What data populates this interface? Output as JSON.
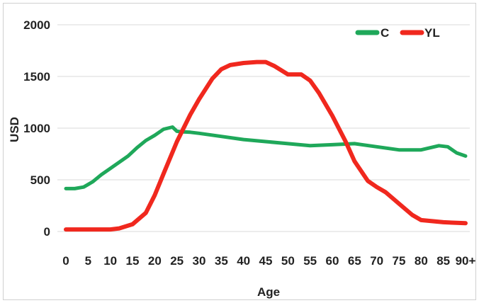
{
  "chart_data": {
    "type": "line",
    "title": "",
    "xlabel": "Age",
    "ylabel": "USD",
    "ylim": [
      0,
      2000
    ],
    "yticks": [
      0,
      500,
      1000,
      1500,
      2000
    ],
    "xlim": [
      0,
      90
    ],
    "xticks": [
      {
        "value": 0,
        "label": "0"
      },
      {
        "value": 5,
        "label": "5"
      },
      {
        "value": 10,
        "label": "10"
      },
      {
        "value": 15,
        "label": "15"
      },
      {
        "value": 20,
        "label": "20"
      },
      {
        "value": 25,
        "label": "25"
      },
      {
        "value": 30,
        "label": "30"
      },
      {
        "value": 35,
        "label": "35"
      },
      {
        "value": 40,
        "label": "40"
      },
      {
        "value": 45,
        "label": "45"
      },
      {
        "value": 50,
        "label": "50"
      },
      {
        "value": 55,
        "label": "55"
      },
      {
        "value": 60,
        "label": "60"
      },
      {
        "value": 65,
        "label": "65"
      },
      {
        "value": 70,
        "label": "70"
      },
      {
        "value": 75,
        "label": "75"
      },
      {
        "value": 80,
        "label": "80"
      },
      {
        "value": 85,
        "label": "85"
      },
      {
        "value": 90,
        "label": "90+"
      }
    ],
    "grid": "horizontal",
    "legend_position": "top-right",
    "series": [
      {
        "name": "C",
        "color": "#1fa85a",
        "x": [
          0,
          2,
          4,
          6,
          8,
          10,
          12,
          14,
          16,
          18,
          20,
          22,
          24,
          25,
          26,
          28,
          30,
          35,
          40,
          45,
          50,
          55,
          60,
          65,
          70,
          75,
          80,
          84,
          86,
          88,
          90
        ],
        "y": [
          415,
          415,
          430,
          480,
          550,
          610,
          670,
          730,
          810,
          880,
          930,
          990,
          1010,
          970,
          965,
          960,
          950,
          920,
          890,
          870,
          850,
          830,
          840,
          850,
          820,
          790,
          790,
          830,
          820,
          760,
          730
        ]
      },
      {
        "name": "YL",
        "color": "#f0281e",
        "x": [
          0,
          5,
          10,
          12,
          15,
          18,
          20,
          22,
          25,
          28,
          30,
          33,
          35,
          37,
          40,
          43,
          45,
          47,
          50,
          53,
          55,
          57,
          60,
          63,
          65,
          68,
          70,
          72,
          75,
          78,
          80,
          85,
          90
        ],
        "y": [
          20,
          20,
          20,
          30,
          70,
          180,
          350,
          560,
          870,
          1130,
          1280,
          1480,
          1570,
          1610,
          1630,
          1640,
          1640,
          1600,
          1520,
          1520,
          1460,
          1340,
          1120,
          870,
          680,
          490,
          430,
          380,
          270,
          160,
          110,
          90,
          80
        ]
      }
    ]
  }
}
